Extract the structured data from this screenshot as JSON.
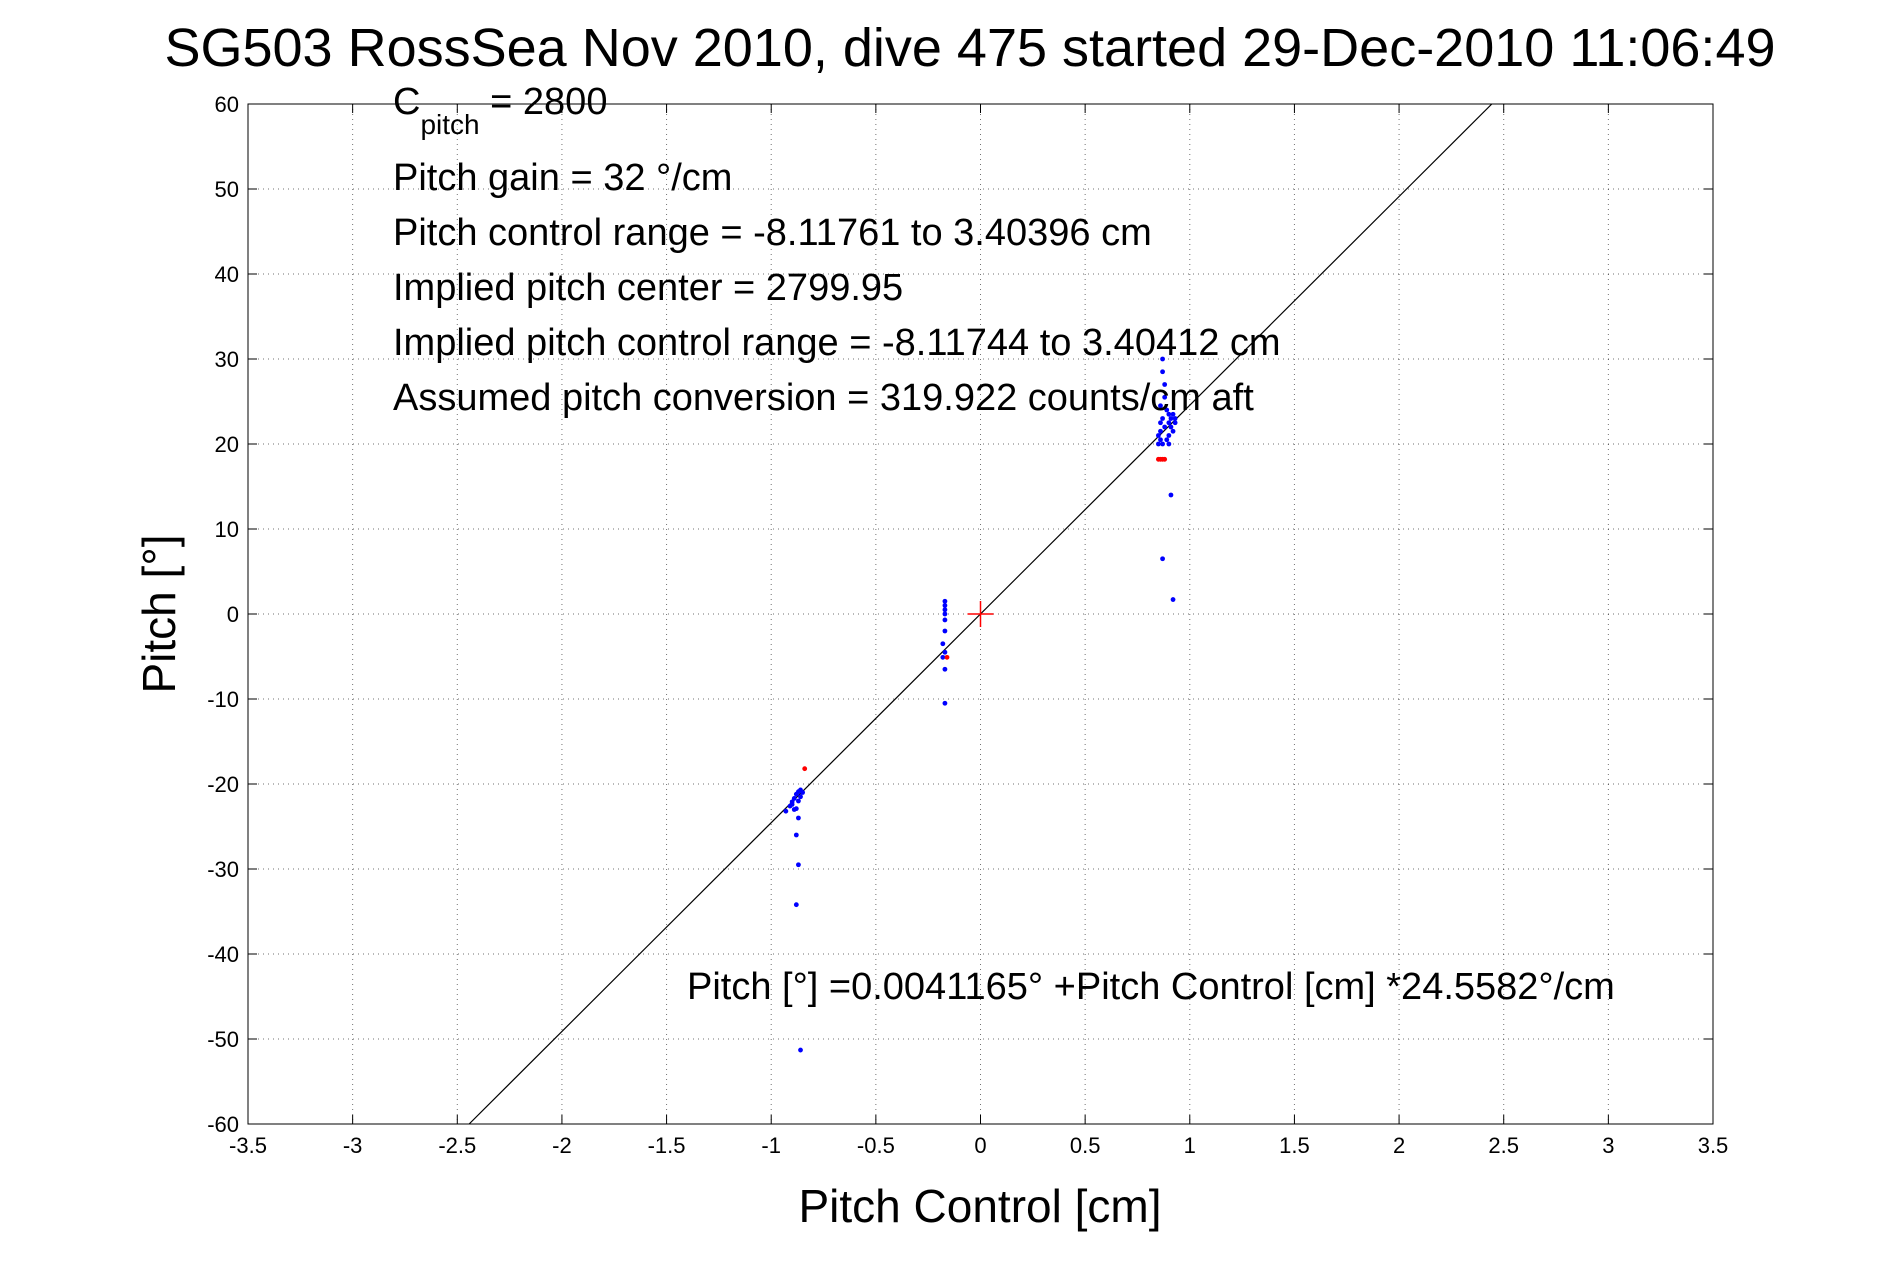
{
  "chart_data": {
    "type": "scatter",
    "title": "SG503 RossSea Nov 2010, dive 475 started 29-Dec-2010 11:06:49",
    "xlabel": "Pitch Control [cm]",
    "ylabel": "Pitch [°]",
    "xlim": [
      -3.5,
      3.5
    ],
    "ylim": [
      -60,
      60
    ],
    "xticks": [
      -3.5,
      -3,
      -2.5,
      -2,
      -1.5,
      -1,
      -0.5,
      0,
      0.5,
      1,
      1.5,
      2,
      2.5,
      3,
      3.5
    ],
    "xtick_labels": [
      "-3.5",
      "-3",
      "-2.5",
      "-2",
      "-1.5",
      "-1",
      "-0.5",
      "0",
      "0.5",
      "1",
      "1.5",
      "2",
      "2.5",
      "3",
      "3.5"
    ],
    "yticks": [
      -60,
      -50,
      -40,
      -30,
      -20,
      -10,
      0,
      10,
      20,
      30,
      40,
      50,
      60
    ],
    "ytick_labels": [
      "-60",
      "-50",
      "-40",
      "-30",
      "-20",
      "-10",
      "0",
      "10",
      "20",
      "30",
      "40",
      "50",
      "60"
    ],
    "grid": true,
    "annotations": {
      "c_pitch_base": "C",
      "c_pitch_sub": "pitch",
      "c_pitch_value": " = 2800",
      "lines": [
        "Pitch gain = 32 °/cm",
        "Pitch control range = -8.11761 to 3.40396 cm",
        "Implied pitch center = 2799.95",
        "Implied pitch control range = -8.11744 to 3.40412 cm",
        "Assumed pitch conversion = 319.922 counts/cm aft"
      ],
      "fit_equation": "Pitch [°] =0.0041165° +Pitch Control [cm] *24.5582°/cm"
    },
    "fit_line": {
      "intercept": 0.0041165,
      "slope": 24.5582,
      "color": "#000000"
    },
    "center_marker": {
      "x": 0,
      "y": 0,
      "color": "#ff0000"
    },
    "series": [
      {
        "color": "#0000ff",
        "points": [
          [
            -0.93,
            -23.2
          ],
          [
            -0.91,
            -22.6
          ],
          [
            -0.9,
            -22.1
          ],
          [
            -0.89,
            -21.7
          ],
          [
            -0.88,
            -21.2
          ],
          [
            -0.87,
            -20.9
          ],
          [
            -0.87,
            -22.0
          ],
          [
            -0.88,
            -22.9
          ],
          [
            -0.86,
            -21.5
          ],
          [
            -0.86,
            -20.7
          ],
          [
            -0.85,
            -21.0
          ],
          [
            -0.89,
            -23.0
          ],
          [
            -0.9,
            -22.4
          ],
          [
            -0.87,
            -24.0
          ],
          [
            -0.88,
            -26.0
          ],
          [
            -0.87,
            -29.5
          ],
          [
            -0.88,
            -34.2
          ],
          [
            -0.86,
            -51.3
          ],
          [
            -0.17,
            1.5
          ],
          [
            -0.17,
            1.0
          ],
          [
            -0.17,
            0.5
          ],
          [
            -0.17,
            0.0
          ],
          [
            -0.17,
            -0.7
          ],
          [
            -0.17,
            -2.0
          ],
          [
            -0.18,
            -3.5
          ],
          [
            -0.17,
            -4.5
          ],
          [
            -0.18,
            -5.1
          ],
          [
            -0.17,
            -6.5
          ],
          [
            -0.17,
            -10.5
          ],
          [
            0.87,
            30.0
          ],
          [
            0.87,
            28.5
          ],
          [
            0.88,
            27.0
          ],
          [
            0.88,
            25.5
          ],
          [
            0.86,
            24.5
          ],
          [
            0.89,
            24.0
          ],
          [
            0.9,
            23.5
          ],
          [
            0.91,
            23.0
          ],
          [
            0.92,
            23.5
          ],
          [
            0.93,
            23.0
          ],
          [
            0.9,
            22.5
          ],
          [
            0.88,
            22.0
          ],
          [
            0.86,
            21.5
          ],
          [
            0.85,
            21.0
          ],
          [
            0.86,
            20.5
          ],
          [
            0.87,
            20.0
          ],
          [
            0.89,
            20.5
          ],
          [
            0.9,
            21.0
          ],
          [
            0.92,
            21.5
          ],
          [
            0.91,
            22.0
          ],
          [
            0.87,
            23.0
          ],
          [
            0.86,
            22.5
          ],
          [
            0.85,
            20.0
          ],
          [
            0.9,
            20.0
          ],
          [
            0.93,
            22.5
          ],
          [
            0.91,
            14.0
          ],
          [
            0.87,
            6.5
          ],
          [
            0.92,
            1.7
          ]
        ]
      },
      {
        "color": "#ff0000",
        "points": [
          [
            -0.84,
            -18.2
          ],
          [
            -0.16,
            -5.1
          ],
          [
            0.85,
            18.2
          ],
          [
            0.86,
            18.2
          ],
          [
            0.87,
            18.2
          ],
          [
            0.88,
            18.2
          ]
        ]
      }
    ]
  }
}
